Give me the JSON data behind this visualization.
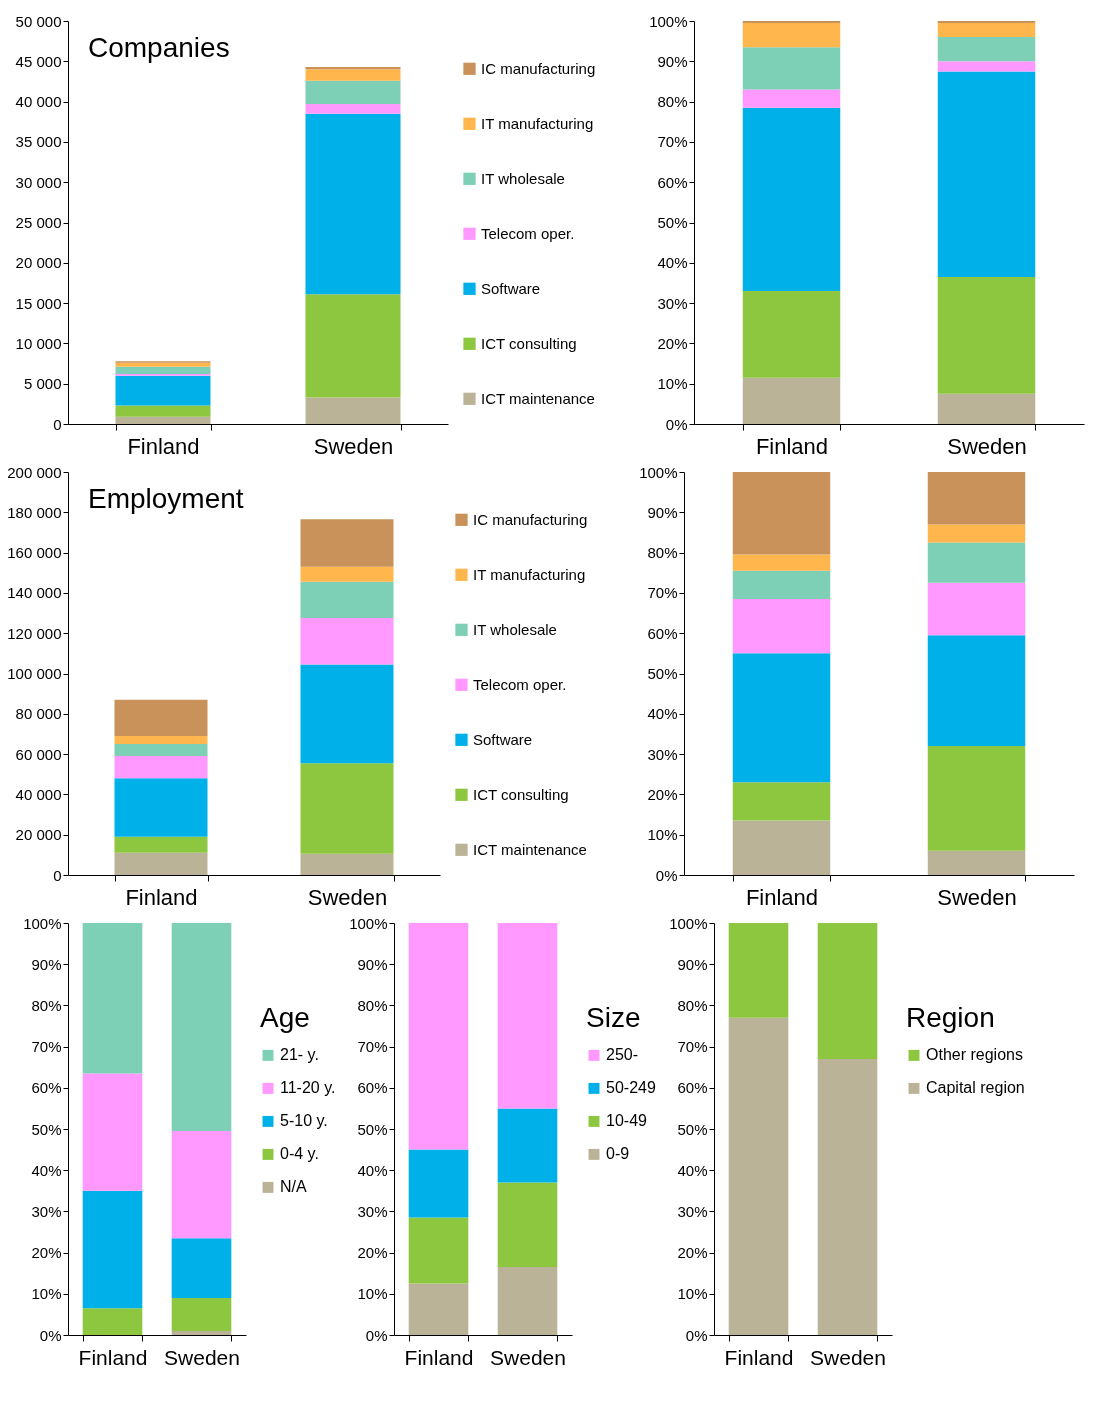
{
  "chart_data": [
    {
      "type": "bar",
      "title": "Companies",
      "stacked": true,
      "legend": "right",
      "categories": [
        "Finland",
        "Sweden"
      ],
      "series": [
        {
          "name": "ICT maintenance",
          "color": "#bbb398",
          "values": [
            900,
            3300
          ]
        },
        {
          "name": "ICT consulting",
          "color": "#8dc63f",
          "values": [
            1400,
            12800
          ]
        },
        {
          "name": "Software",
          "color": "#00b0e8",
          "values": [
            3700,
            22400
          ]
        },
        {
          "name": "Telecom oper.",
          "color": "#ff99ff",
          "values": [
            200,
            1200
          ]
        },
        {
          "name": "IT wholesale",
          "color": "#7dcfb6",
          "values": [
            900,
            2900
          ]
        },
        {
          "name": "IT manufacturing",
          "color": "#ffb64c",
          "values": [
            500,
            1400
          ]
        },
        {
          "name": "IC manufacturing",
          "color": "#c9925a",
          "values": [
            200,
            300
          ]
        }
      ],
      "ylim": [
        0,
        50000
      ],
      "yticks": [
        0,
        {
          "value": 5000,
          "label": "5 000"
        },
        {
          "value": 10000,
          "label": "10 000"
        },
        {
          "value": 15000,
          "label": "15 000"
        },
        {
          "value": 20000,
          "label": "20 000"
        },
        {
          "value": 25000,
          "label": "25 000"
        },
        {
          "value": 30000,
          "label": "30 000"
        },
        {
          "value": 35000,
          "label": "35 000"
        },
        {
          "value": 40000,
          "label": "40 000"
        },
        {
          "value": 45000,
          "label": "45 000"
        },
        {
          "value": 50000,
          "label": "50 000"
        }
      ]
    },
    {
      "type": "bar",
      "stacked": true,
      "categories": [
        "Finland",
        "Sweden"
      ],
      "series": [
        {
          "color": "#bbb398",
          "values": [
            11.5,
            7.5
          ]
        },
        {
          "color": "#8dc63f",
          "values": [
            21.5,
            29
          ]
        },
        {
          "color": "#00b0e8",
          "values": [
            45.5,
            51
          ]
        },
        {
          "color": "#ff99ff",
          "values": [
            4.5,
            2.5
          ]
        },
        {
          "color": "#7dcfb6",
          "values": [
            10.5,
            6
          ]
        },
        {
          "color": "#ffb64c",
          "values": [
            6,
            3.5
          ]
        },
        {
          "color": "#c9925a",
          "values": [
            0.5,
            0.5
          ]
        }
      ],
      "ylim": [
        0,
        100
      ],
      "yticks": [
        {
          "value": 0,
          "label": "0%"
        },
        {
          "value": 10,
          "label": "10%"
        },
        {
          "value": 20,
          "label": "20%"
        },
        {
          "value": 30,
          "label": "30%"
        },
        {
          "value": 40,
          "label": "40%"
        },
        {
          "value": 50,
          "label": "50%"
        },
        {
          "value": 60,
          "label": "60%"
        },
        {
          "value": 70,
          "label": "70%"
        },
        {
          "value": 80,
          "label": "80%"
        },
        {
          "value": 90,
          "label": "90%"
        },
        {
          "value": 100,
          "label": "100%"
        }
      ]
    },
    {
      "type": "bar",
      "title": "Employment",
      "stacked": true,
      "legend": "right",
      "categories": [
        "Finland",
        "Sweden"
      ],
      "series": [
        {
          "name": "ICT maintenance",
          "color": "#bbb398",
          "values": [
            11000,
            10500
          ]
        },
        {
          "name": "ICT consulting",
          "color": "#8dc63f",
          "values": [
            8000,
            45000
          ]
        },
        {
          "name": "Software",
          "color": "#00b0e8",
          "values": [
            29000,
            49000
          ]
        },
        {
          "name": "Telecom oper.",
          "color": "#ff99ff",
          "values": [
            11000,
            23000
          ]
        },
        {
          "name": "IT wholesale",
          "color": "#7dcfb6",
          "values": [
            6000,
            18000
          ]
        },
        {
          "name": "IT manufacturing",
          "color": "#ffb64c",
          "values": [
            4000,
            7500
          ]
        },
        {
          "name": "IC manufacturing",
          "color": "#c9925a",
          "values": [
            18000,
            23500
          ]
        }
      ],
      "ylim": [
        0,
        200000
      ],
      "yticks": [
        0,
        {
          "value": 20000,
          "label": "20 000"
        },
        {
          "value": 40000,
          "label": "40 000"
        },
        {
          "value": 60000,
          "label": "60 000"
        },
        {
          "value": 80000,
          "label": "80 000"
        },
        {
          "value": 100000,
          "label": "100 000"
        },
        {
          "value": 120000,
          "label": "120 000"
        },
        {
          "value": 140000,
          "label": "140 000"
        },
        {
          "value": 160000,
          "label": "160 000"
        },
        {
          "value": 180000,
          "label": "180 000"
        },
        {
          "value": 200000,
          "label": "200 000"
        }
      ]
    },
    {
      "type": "bar",
      "stacked": true,
      "categories": [
        "Finland",
        "Sweden"
      ],
      "series": [
        {
          "color": "#bbb398",
          "values": [
            13.5,
            6
          ]
        },
        {
          "color": "#8dc63f",
          "values": [
            9.5,
            26
          ]
        },
        {
          "color": "#00b0e8",
          "values": [
            32,
            27.5
          ]
        },
        {
          "color": "#ff99ff",
          "values": [
            13.5,
            13
          ]
        },
        {
          "color": "#7dcfb6",
          "values": [
            7,
            10
          ]
        },
        {
          "color": "#ffb64c",
          "values": [
            4,
            4.5
          ]
        },
        {
          "color": "#c9925a",
          "values": [
            20.5,
            13
          ]
        }
      ],
      "ylim": [
        0,
        100
      ],
      "yticks": [
        {
          "value": 0,
          "label": "0%"
        },
        {
          "value": 10,
          "label": "10%"
        },
        {
          "value": 20,
          "label": "20%"
        },
        {
          "value": 30,
          "label": "30%"
        },
        {
          "value": 40,
          "label": "40%"
        },
        {
          "value": 50,
          "label": "50%"
        },
        {
          "value": 60,
          "label": "60%"
        },
        {
          "value": 70,
          "label": "70%"
        },
        {
          "value": 80,
          "label": "80%"
        },
        {
          "value": 90,
          "label": "90%"
        },
        {
          "value": 100,
          "label": "100%"
        }
      ]
    },
    {
      "type": "bar",
      "stacked": true,
      "legend": "right",
      "legend_title": "Age",
      "categories": [
        "Finland",
        "Sweden"
      ],
      "series": [
        {
          "name": "N/A",
          "color": "#bbb398",
          "values": [
            null,
            1
          ]
        },
        {
          "name": "0-4 y.",
          "color": "#8dc63f",
          "values": [
            6.5,
            8
          ]
        },
        {
          "name": "5-10 y.",
          "color": "#00b0e8",
          "values": [
            28.5,
            14.5
          ]
        },
        {
          "name": "11-20 y.",
          "color": "#ff99ff",
          "values": [
            28.5,
            26
          ]
        },
        {
          "name": "21- y.",
          "color": "#7dcfb6",
          "values": [
            36.5,
            50.5
          ]
        }
      ],
      "ylim": [
        0,
        100
      ],
      "yticks": [
        {
          "value": 0,
          "label": "0%"
        },
        {
          "value": 10,
          "label": "10%"
        },
        {
          "value": 20,
          "label": "20%"
        },
        {
          "value": 30,
          "label": "30%"
        },
        {
          "value": 40,
          "label": "40%"
        },
        {
          "value": 50,
          "label": "50%"
        },
        {
          "value": 60,
          "label": "60%"
        },
        {
          "value": 70,
          "label": "70%"
        },
        {
          "value": 80,
          "label": "80%"
        },
        {
          "value": 90,
          "label": "90%"
        },
        {
          "value": 100,
          "label": "100%"
        }
      ]
    },
    {
      "type": "bar",
      "stacked": true,
      "legend": "right",
      "legend_title": "Size",
      "categories": [
        "Finland",
        "Sweden"
      ],
      "series": [
        {
          "name": "0-9",
          "color": "#bbb398",
          "values": [
            12.5,
            16.5
          ]
        },
        {
          "name": "10-49",
          "color": "#8dc63f",
          "values": [
            16,
            20.5
          ]
        },
        {
          "name": "50-249",
          "color": "#00b0e8",
          "values": [
            16.5,
            18
          ]
        },
        {
          "name": "250-",
          "color": "#ff99ff",
          "values": [
            55,
            45
          ]
        }
      ],
      "ylim": [
        0,
        100
      ],
      "yticks": [
        {
          "value": 0,
          "label": "0%"
        },
        {
          "value": 10,
          "label": "10%"
        },
        {
          "value": 20,
          "label": "20%"
        },
        {
          "value": 30,
          "label": "30%"
        },
        {
          "value": 40,
          "label": "40%"
        },
        {
          "value": 50,
          "label": "50%"
        },
        {
          "value": 60,
          "label": "60%"
        },
        {
          "value": 70,
          "label": "70%"
        },
        {
          "value": 80,
          "label": "80%"
        },
        {
          "value": 90,
          "label": "90%"
        },
        {
          "value": 100,
          "label": "100%"
        }
      ]
    },
    {
      "type": "bar",
      "stacked": true,
      "legend": "right",
      "legend_title": "Region",
      "categories": [
        "Finland",
        "Sweden"
      ],
      "series": [
        {
          "name": "Capital region",
          "color": "#bbb398",
          "values": [
            77,
            67
          ]
        },
        {
          "name": "Other regions",
          "color": "#8dc63f",
          "values": [
            23,
            33
          ]
        }
      ],
      "ylim": [
        0,
        100
      ],
      "yticks": [
        {
          "value": 0,
          "label": "0%"
        },
        {
          "value": 10,
          "label": "10%"
        },
        {
          "value": 20,
          "label": "20%"
        },
        {
          "value": 30,
          "label": "30%"
        },
        {
          "value": 40,
          "label": "40%"
        },
        {
          "value": 50,
          "label": "50%"
        },
        {
          "value": 60,
          "label": "60%"
        },
        {
          "value": 70,
          "label": "70%"
        },
        {
          "value": 80,
          "label": "80%"
        },
        {
          "value": 90,
          "label": "90%"
        },
        {
          "value": 100,
          "label": "100%"
        }
      ]
    }
  ]
}
